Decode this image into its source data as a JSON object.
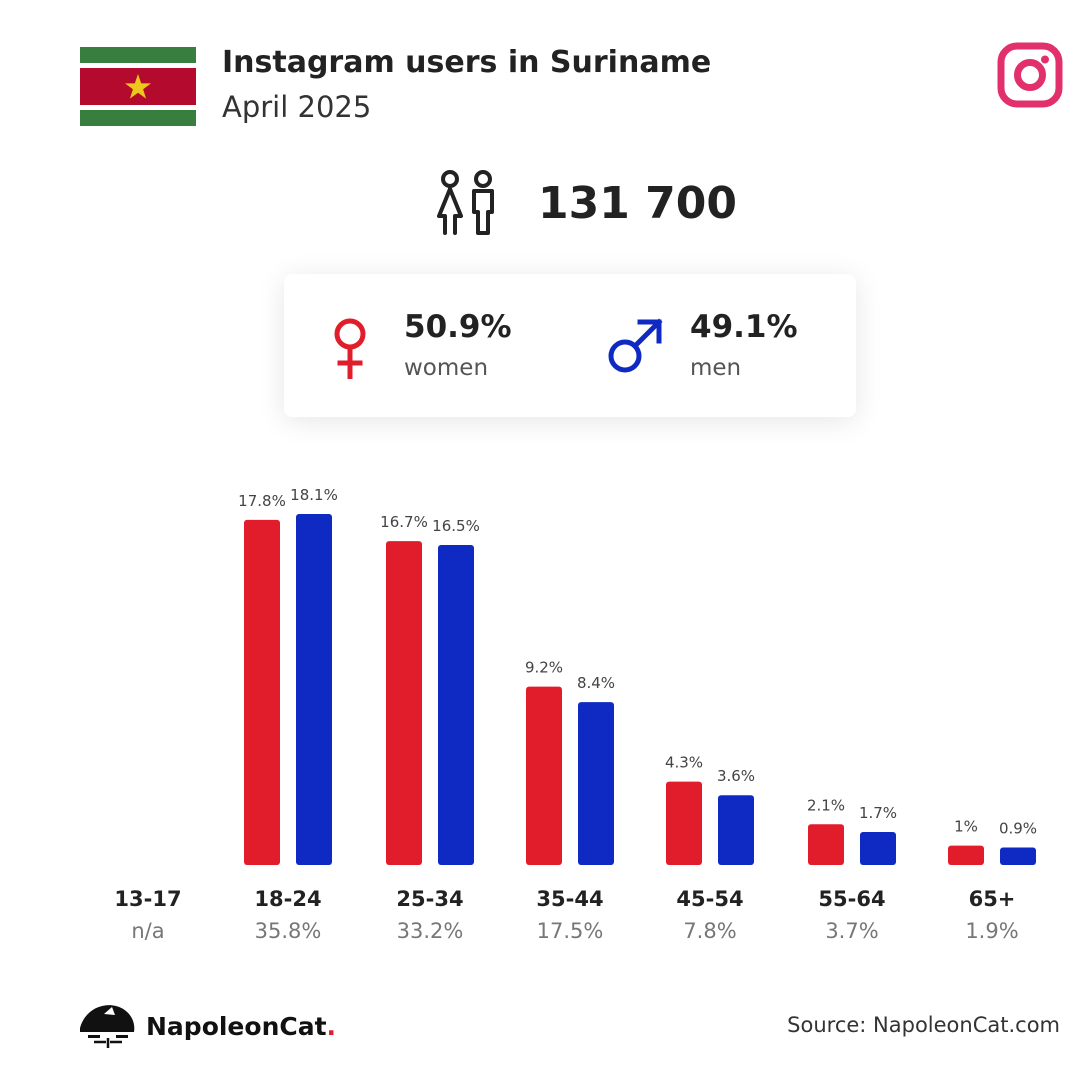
{
  "header": {
    "title": "Instagram users in Suriname",
    "subtitle": "April 2025"
  },
  "total": {
    "value": "131 700"
  },
  "gender": {
    "women": {
      "pct": "50.9%",
      "label": "women",
      "color": "#e11d2b"
    },
    "men": {
      "pct": "49.1%",
      "label": "men",
      "color": "#0f2ac2"
    }
  },
  "chart_data": {
    "type": "bar",
    "categories": [
      "13-17",
      "18-24",
      "25-34",
      "35-44",
      "45-54",
      "55-64",
      "65+"
    ],
    "totals": [
      "n/a",
      "35.8%",
      "33.2%",
      "17.5%",
      "7.8%",
      "3.7%",
      "1.9%"
    ],
    "series": [
      {
        "color": "#e11d2b",
        "values": [
          null,
          17.8,
          16.7,
          9.2,
          4.3,
          2.1,
          1
        ],
        "labels": [
          "",
          "17.8%",
          "16.7%",
          "9.2%",
          "4.3%",
          "2.1%",
          "1%"
        ]
      },
      {
        "color": "#0f2ac2",
        "values": [
          null,
          18.1,
          16.5,
          8.4,
          3.6,
          1.7,
          0.9
        ],
        "labels": [
          "",
          "18.1%",
          "16.5%",
          "8.4%",
          "3.6%",
          "1.7%",
          "0.9%"
        ]
      }
    ],
    "ylim": [
      0,
      18.1
    ]
  },
  "footer": {
    "brand": "NapoleonCat",
    "brand_dot": ".",
    "source": "Source: NapoleonCat.com"
  },
  "icons": {
    "flag": "suriname-flag-icon",
    "instagram": "instagram-logo-icon",
    "people": "people-icon",
    "female": "female-symbol-icon",
    "male": "male-symbol-icon",
    "logo": "napoleoncat-logo-icon"
  }
}
